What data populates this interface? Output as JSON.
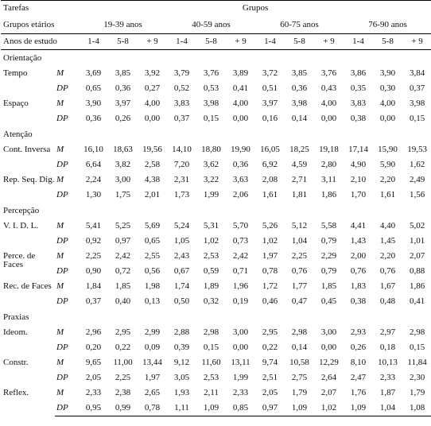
{
  "header": {
    "tarefas": "Tarefas",
    "grupos": "Grupos",
    "grupos_etarios": "Grupos etários",
    "anos_estudo": "Anos de estudo",
    "age_groups": [
      "19-39 anos",
      "40-59 anos",
      "60-75 anos",
      "76-90 anos"
    ],
    "edu": [
      "1-4",
      "5-8",
      "+ 9"
    ]
  },
  "stats": {
    "mean": "M",
    "sd": "DP"
  },
  "sections": [
    {
      "name": "Orientação",
      "items": [
        {
          "label": "Tempo",
          "M": [
            "3,69",
            "3,85",
            "3,92",
            "3,79",
            "3,76",
            "3,89",
            "3,72",
            "3,85",
            "3,76",
            "3,86",
            "3,90",
            "3,84"
          ],
          "DP": [
            "0,65",
            "0,36",
            "0,27",
            "0,52",
            "0,53",
            "0,41",
            "0,51",
            "0,36",
            "0,43",
            "0,35",
            "0,30",
            "0,37"
          ]
        },
        {
          "label": "Espaço",
          "M": [
            "3,90",
            "3,97",
            "4,00",
            "3,83",
            "3,98",
            "4,00",
            "3,97",
            "3,98",
            "4,00",
            "3,83",
            "4,00",
            "3,98"
          ],
          "DP": [
            "0,36",
            "0,26",
            "0,00",
            "0,37",
            "0,15",
            "0,00",
            "0,16",
            "0,14",
            "0,00",
            "0,38",
            "0,00",
            "0,15"
          ]
        }
      ]
    },
    {
      "name": "Atenção",
      "items": [
        {
          "label": "Cont. Inversa",
          "M": [
            "16,10",
            "18,63",
            "19,56",
            "14,10",
            "18,80",
            "19,90",
            "16,05",
            "18,25",
            "19,18",
            "17,14",
            "15,90",
            "19,53"
          ],
          "DP": [
            "6,64",
            "3,82",
            "2,58",
            "7,20",
            "3,62",
            "0,36",
            "6,92",
            "4,59",
            "2,80",
            "4,90",
            "5,90",
            "1,62"
          ]
        },
        {
          "label": "Rep. Seq. Dig.",
          "M": [
            "2,24",
            "3,00",
            "4,38",
            "2,31",
            "3,22",
            "3,63",
            "2,08",
            "2,71",
            "3,11",
            "2,10",
            "2,20",
            "2,49"
          ],
          "DP": [
            "1,30",
            "1,75",
            "2,01",
            "1,73",
            "1,99",
            "2,06",
            "1,61",
            "1,81",
            "1,86",
            "1,70",
            "1,61",
            "1,56"
          ]
        }
      ]
    },
    {
      "name": "Percepção",
      "items": [
        {
          "label": "V. I. D. L.",
          "M": [
            "5,41",
            "5,25",
            "5,69",
            "5,24",
            "5,31",
            "5,70",
            "5,26",
            "5,12",
            "5,58",
            "4,41",
            "4,40",
            "5,02"
          ],
          "DP": [
            "0,92",
            "0,97",
            "0,65",
            "1,05",
            "1,02",
            "0,73",
            "1,02",
            "1,04",
            "0,79",
            "1,43",
            "1,45",
            "1,01"
          ]
        },
        {
          "label": "Perce. de Faces",
          "M": [
            "2,25",
            "2,42",
            "2,55",
            "2,43",
            "2,53",
            "2,42",
            "1,97",
            "2,25",
            "2,29",
            "2,00",
            "2,20",
            "2,07"
          ],
          "DP": [
            "0,90",
            "0,72",
            "0,56",
            "0,67",
            "0,59",
            "0,71",
            "0,78",
            "0,76",
            "0,79",
            "0,76",
            "0,76",
            "0,88"
          ]
        },
        {
          "label": "Rec. de Faces",
          "M": [
            "1,84",
            "1,85",
            "1,98",
            "1,74",
            "1,89",
            "1,96",
            "1,72",
            "1,77",
            "1,85",
            "1,83",
            "1,67",
            "1,86"
          ],
          "DP": [
            "0,37",
            "0,40",
            "0,13",
            "0,50",
            "0,32",
            "0,19",
            "0,46",
            "0,47",
            "0,45",
            "0,38",
            "0,48",
            "0,41"
          ]
        }
      ]
    },
    {
      "name": "Praxias",
      "items": [
        {
          "label": "Ideom.",
          "M": [
            "2,96",
            "2,95",
            "2,99",
            "2,88",
            "2,98",
            "3,00",
            "2,95",
            "2,98",
            "3,00",
            "2,93",
            "2,97",
            "2,98"
          ],
          "DP": [
            "0,20",
            "0,22",
            "0,09",
            "0,39",
            "0,15",
            "0,00",
            "0,22",
            "0,14",
            "0,00",
            "0,26",
            "0,18",
            "0,15"
          ]
        },
        {
          "label": "Constr.",
          "M": [
            "9,65",
            "11,00",
            "13,44",
            "9,12",
            "11,60",
            "13,11",
            "9,74",
            "10,58",
            "12,29",
            "8,10",
            "10,13",
            "11,84"
          ],
          "DP": [
            "2,05",
            "2,25",
            "1,97",
            "3,05",
            "2,53",
            "1,99",
            "2,51",
            "2,75",
            "2,64",
            "2,47",
            "2,33",
            "2,30"
          ]
        },
        {
          "label": "Reflex.",
          "M": [
            "2,33",
            "2,38",
            "2,65",
            "1,93",
            "2,11",
            "2,33",
            "2,05",
            "1,79",
            "2,07",
            "1,76",
            "1,87",
            "1,79"
          ],
          "DP": [
            "0,95",
            "0,99",
            "0,78",
            "1,11",
            "1,09",
            "0,85",
            "0,97",
            "1,09",
            "1,02",
            "1,09",
            "1,04",
            "1,08"
          ]
        }
      ]
    }
  ]
}
